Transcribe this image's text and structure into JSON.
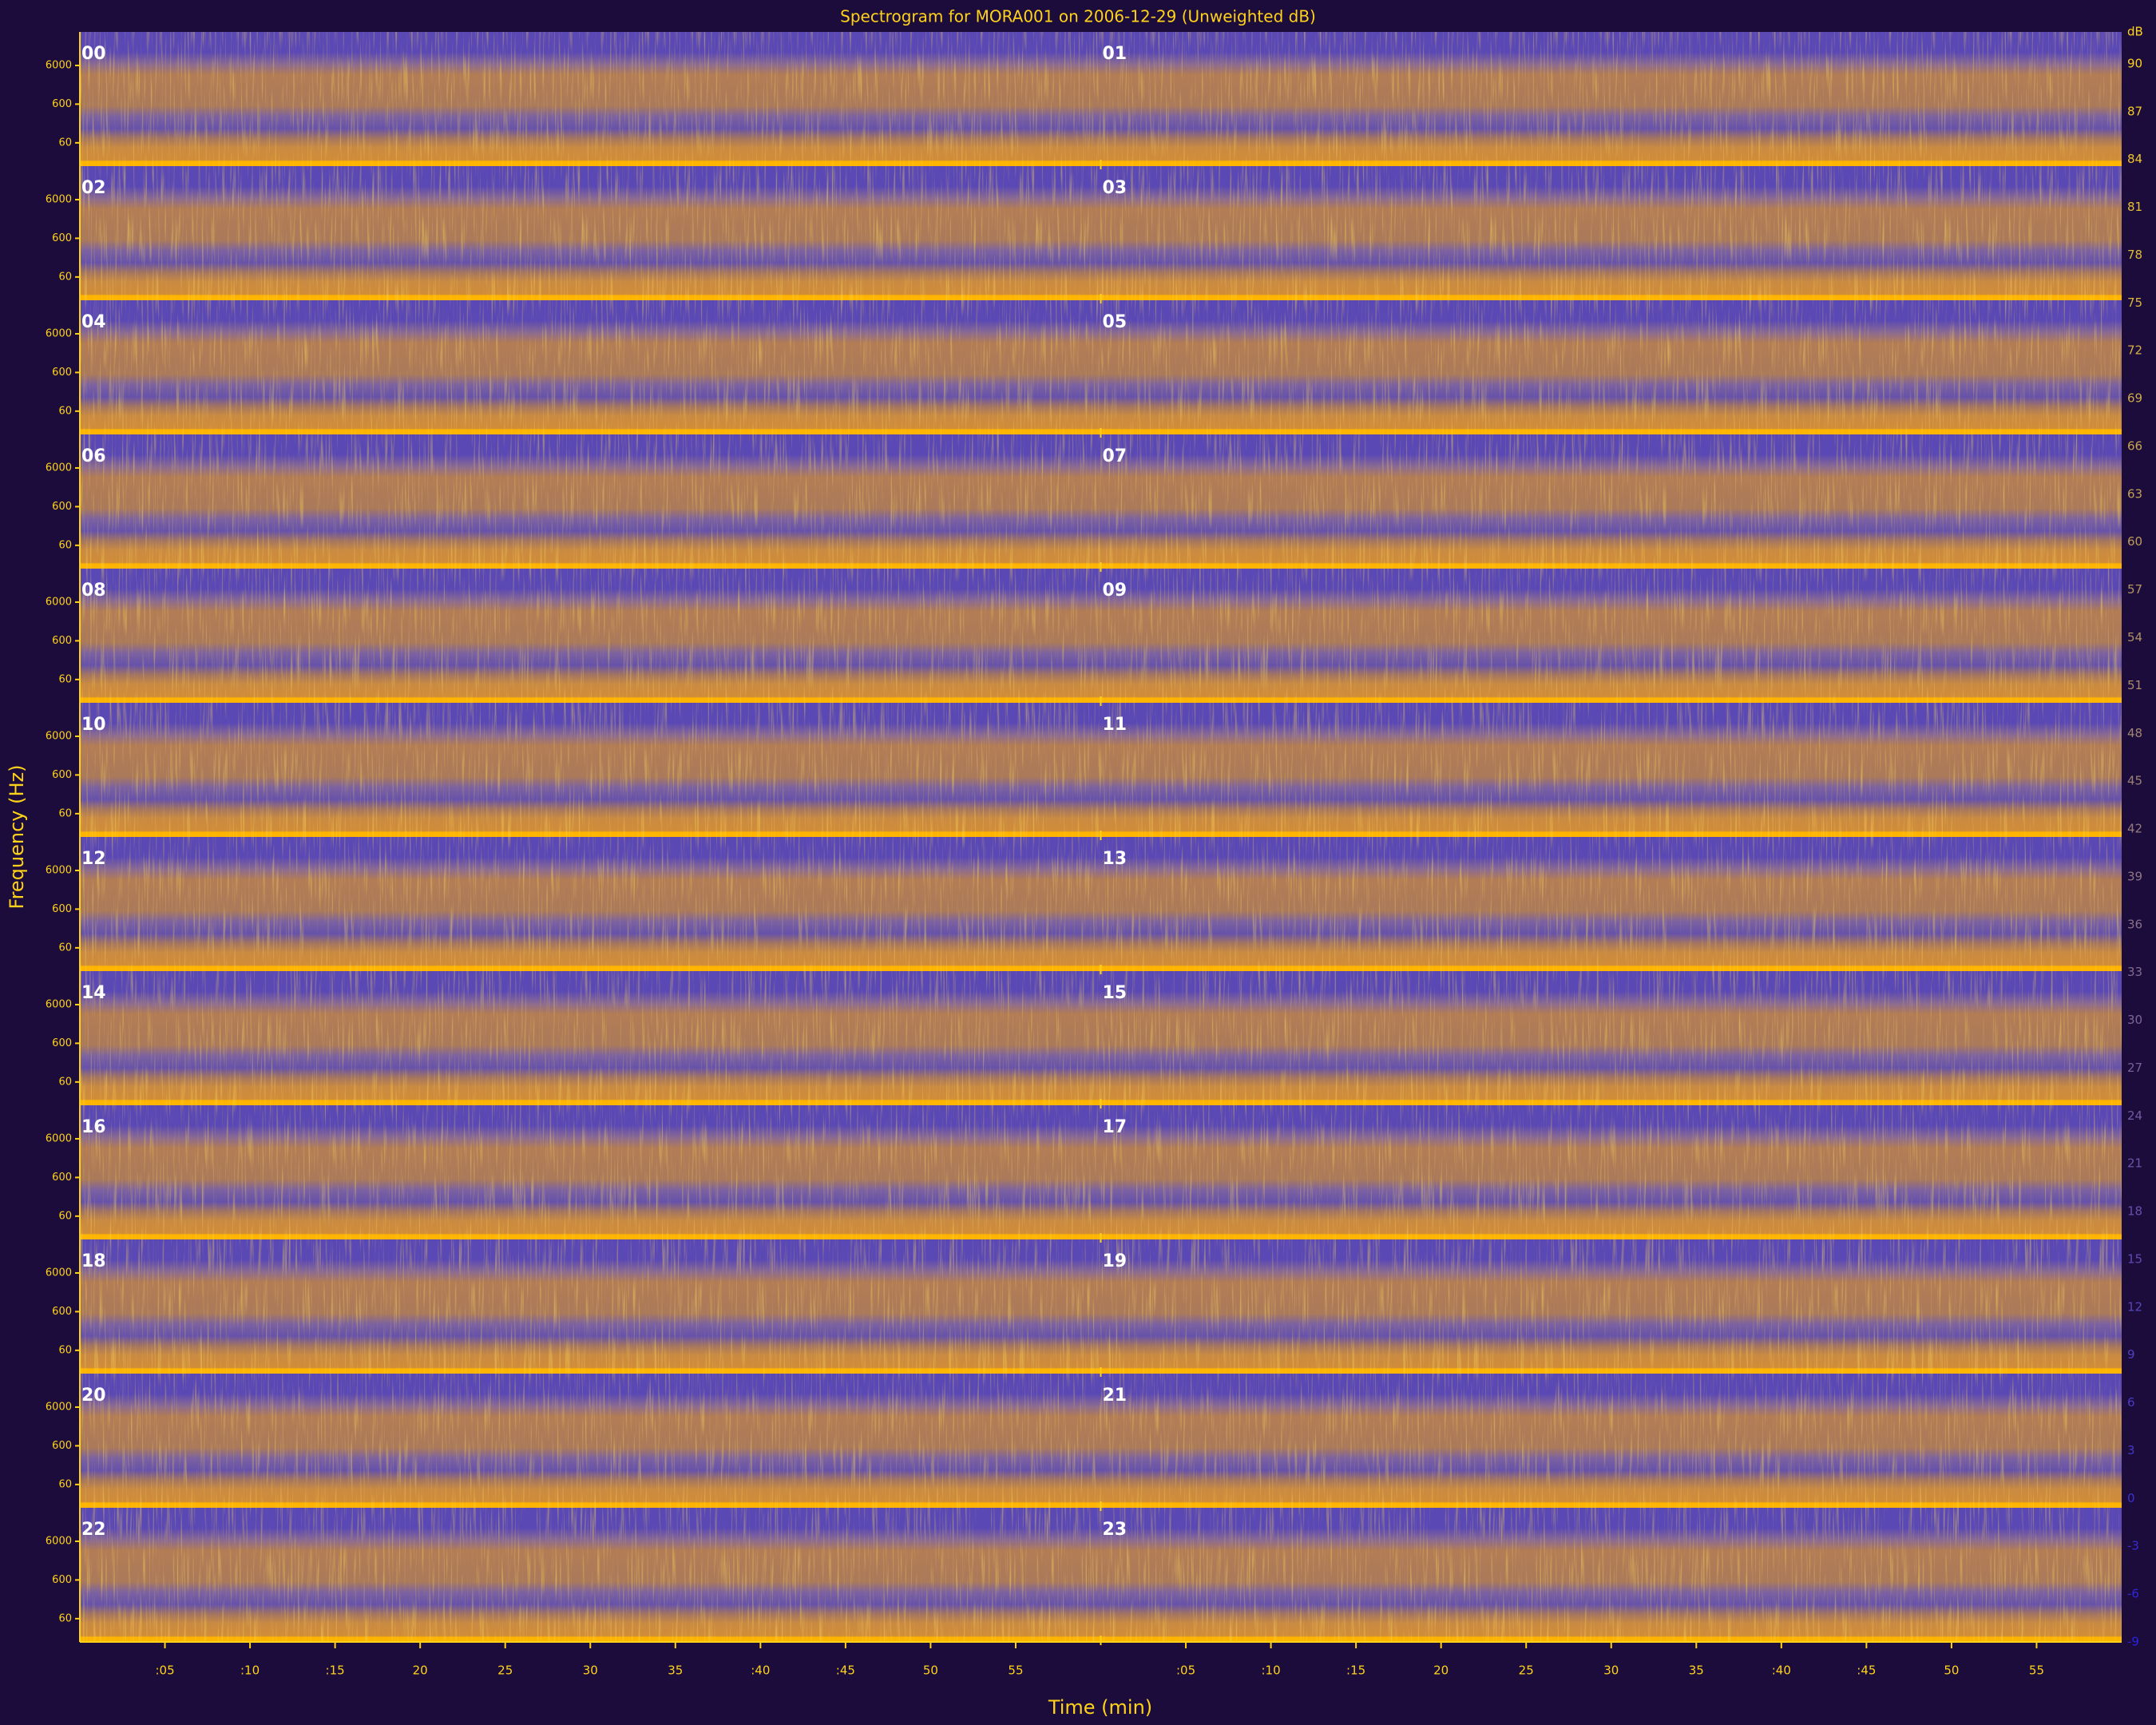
{
  "chart_data": {
    "type": "spectrogram",
    "title": "Spectrogram for MORA001 on 2006-12-29 (Unweighted dB)",
    "xlabel": "Time (min)",
    "ylabel": "Frequency (Hz)",
    "panels": [
      "00",
      "01",
      "02",
      "03",
      "04",
      "05",
      "06",
      "07",
      "08",
      "09",
      "10",
      "11",
      "12",
      "13",
      "14",
      "15",
      "16",
      "17",
      "18",
      "19",
      "20",
      "21",
      "22",
      "23"
    ],
    "xlim": [
      0,
      60
    ],
    "xticks": [
      {
        "value": 5,
        "label": ":05"
      },
      {
        "value": 10,
        "label": ":10"
      },
      {
        "value": 15,
        "label": ":15"
      },
      20,
      25,
      30,
      35,
      {
        "value": 40,
        "label": ":40"
      },
      {
        "value": 45,
        "label": ":45"
      },
      50,
      55
    ],
    "ylim": [
      15,
      44100
    ],
    "log_y": true,
    "yticks": [
      60,
      600,
      6000
    ],
    "colorbar_label": "dB",
    "clim": [
      -9,
      92
    ],
    "cticks": [
      90,
      87,
      84,
      81,
      78,
      75,
      72,
      69,
      66,
      63,
      60,
      57,
      54,
      51,
      48,
      45,
      42,
      39,
      36,
      33,
      30,
      27,
      24,
      21,
      18,
      15,
      12,
      9,
      6,
      3,
      0,
      -3,
      -6,
      -9
    ],
    "colormap": [
      "#2a22e0",
      "#ffd21a"
    ]
  }
}
